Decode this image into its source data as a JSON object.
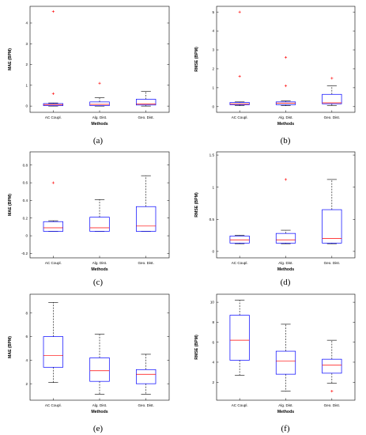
{
  "colors": {
    "box": "#0000ff",
    "median": "#ff0000",
    "outlier": "#ff0000",
    "whisker": "#000000",
    "axis": "#000000"
  },
  "chart_data": [
    {
      "type": "boxplot",
      "panel_label": "(a)",
      "xlabel": "Methods",
      "ylabel": "MAE (BPM)",
      "categories": [
        "AC Coupl.",
        "Alg. Dist.",
        "Geo. Dist."
      ],
      "ylim": [
        -0.3,
        4.8
      ],
      "yticks": [
        0,
        1,
        2,
        3,
        4
      ],
      "yticklabels": [
        "0",
        "1",
        "2",
        "3",
        "4"
      ],
      "boxes": [
        {
          "whislo": 0.0,
          "q1": 0.02,
          "med": 0.07,
          "q3": 0.12,
          "whishi": 0.15,
          "fliers": [
            0.6,
            4.55
          ]
        },
        {
          "whislo": 0.0,
          "q1": 0.02,
          "med": 0.08,
          "q3": 0.2,
          "whishi": 0.4,
          "fliers": [
            1.1
          ]
        },
        {
          "whislo": 0.0,
          "q1": 0.05,
          "med": 0.1,
          "q3": 0.33,
          "whishi": 0.7,
          "fliers": []
        }
      ]
    },
    {
      "type": "boxplot",
      "panel_label": "(b)",
      "xlabel": "Methods",
      "ylabel": "RMSE (BPM)",
      "categories": [
        "AC Coupl.",
        "Alg. Dist.",
        "Geo. Dist."
      ],
      "ylim": [
        -0.3,
        5.3
      ],
      "yticks": [
        0,
        1,
        2,
        3,
        4,
        5
      ],
      "yticklabels": [
        "0",
        "1",
        "2",
        "3",
        "4",
        "5"
      ],
      "boxes": [
        {
          "whislo": 0.05,
          "q1": 0.1,
          "med": 0.15,
          "q3": 0.22,
          "whishi": 0.25,
          "fliers": [
            1.6,
            5.0
          ]
        },
        {
          "whislo": 0.05,
          "q1": 0.1,
          "med": 0.18,
          "q3": 0.25,
          "whishi": 0.3,
          "fliers": [
            1.1,
            2.6
          ]
        },
        {
          "whislo": 0.05,
          "q1": 0.15,
          "med": 0.2,
          "q3": 0.65,
          "whishi": 1.1,
          "fliers": [
            1.5
          ]
        }
      ]
    },
    {
      "type": "boxplot",
      "panel_label": "(c)",
      "xlabel": "Methods",
      "ylabel": "MAE (BPM)",
      "categories": [
        "AC Coupl.",
        "Alg. Dist.",
        "Geo. Dist."
      ],
      "ylim": [
        -0.25,
        0.95
      ],
      "yticks": [
        -0.2,
        0,
        0.2,
        0.4,
        0.6,
        0.8
      ],
      "yticklabels": [
        "-0.2",
        "0",
        "0.2",
        "0.4",
        "0.6",
        "0.8"
      ],
      "boxes": [
        {
          "whislo": 0.05,
          "q1": 0.05,
          "med": 0.09,
          "q3": 0.16,
          "whishi": 0.17,
          "fliers": [
            0.6
          ]
        },
        {
          "whislo": 0.05,
          "q1": 0.05,
          "med": 0.09,
          "q3": 0.21,
          "whishi": 0.41,
          "fliers": []
        },
        {
          "whislo": 0.05,
          "q1": 0.05,
          "med": 0.11,
          "q3": 0.33,
          "whishi": 0.68,
          "fliers": []
        }
      ]
    },
    {
      "type": "boxplot",
      "panel_label": "(d)",
      "xlabel": "Methods",
      "ylabel": "RMSE (BPM)",
      "categories": [
        "AC Coupl.",
        "Alg. Dist.",
        "Geo. Dist."
      ],
      "ylim": [
        -0.1,
        1.55
      ],
      "yticks": [
        0,
        0.5,
        1,
        1.5
      ],
      "yticklabels": [
        "0",
        "0.5",
        "1",
        "1.5"
      ],
      "boxes": [
        {
          "whislo": 0.12,
          "q1": 0.13,
          "med": 0.18,
          "q3": 0.24,
          "whishi": 0.25,
          "fliers": []
        },
        {
          "whislo": 0.12,
          "q1": 0.13,
          "med": 0.18,
          "q3": 0.28,
          "whishi": 0.33,
          "fliers": [
            1.12
          ]
        },
        {
          "whislo": 0.12,
          "q1": 0.13,
          "med": 0.2,
          "q3": 0.65,
          "whishi": 1.12,
          "fliers": []
        }
      ]
    },
    {
      "type": "boxplot",
      "panel_label": "(e)",
      "xlabel": "Methods",
      "ylabel": "MAE (BPM)",
      "categories": [
        "AC Coupl.",
        "Alg. Dist.",
        "Geo. Dist."
      ],
      "ylim": [
        0.6,
        9.6
      ],
      "yticks": [
        2,
        4,
        6,
        8
      ],
      "yticklabels": [
        "2",
        "4",
        "6",
        "8"
      ],
      "boxes": [
        {
          "whislo": 2.1,
          "q1": 3.4,
          "med": 4.4,
          "q3": 6.0,
          "whishi": 8.9,
          "fliers": []
        },
        {
          "whislo": 1.1,
          "q1": 2.2,
          "med": 3.1,
          "q3": 4.2,
          "whishi": 6.2,
          "fliers": []
        },
        {
          "whislo": 1.1,
          "q1": 2.0,
          "med": 2.8,
          "q3": 3.2,
          "whishi": 4.5,
          "fliers": []
        }
      ]
    },
    {
      "type": "boxplot",
      "panel_label": "(f)",
      "xlabel": "Methods",
      "ylabel": "RMSE (BPM)",
      "categories": [
        "AC Coupl.",
        "Alg. Dist.",
        "Geo. Dist."
      ],
      "ylim": [
        0.2,
        10.8
      ],
      "yticks": [
        2,
        4,
        6,
        8,
        10
      ],
      "yticklabels": [
        "2",
        "4",
        "6",
        "8",
        "10"
      ],
      "boxes": [
        {
          "whislo": 2.7,
          "q1": 4.2,
          "med": 6.2,
          "q3": 8.7,
          "whishi": 10.2,
          "fliers": []
        },
        {
          "whislo": 1.1,
          "q1": 2.8,
          "med": 4.1,
          "q3": 5.1,
          "whishi": 7.8,
          "fliers": []
        },
        {
          "whislo": 1.9,
          "q1": 2.9,
          "med": 3.7,
          "q3": 4.3,
          "whishi": 6.2,
          "fliers": [
            1.1
          ]
        }
      ]
    }
  ]
}
